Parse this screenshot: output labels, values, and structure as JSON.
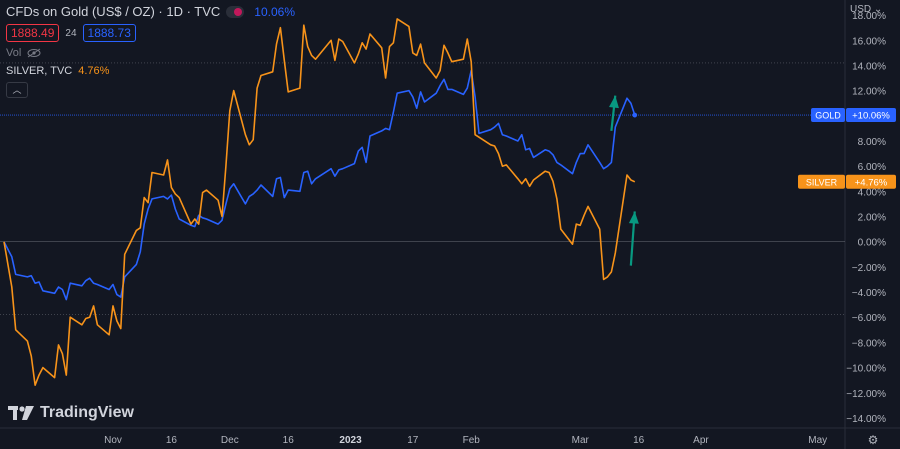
{
  "header": {
    "title": "CFDs on Gold (US$ / OZ) · 1D · TVC",
    "change_pct": "10.06%",
    "bid": "1888.49",
    "spread": "24",
    "ask": "1888.73",
    "vol_label": "Vol",
    "compare_symbol": "SILVER, TVC",
    "compare_pct": "4.76%",
    "currency": "USD",
    "brand": "TradingView"
  },
  "chart_data": {
    "type": "line",
    "y_axis": {
      "unit": "%",
      "ylim": [
        -14.8,
        19.2
      ],
      "ticks": [
        18,
        16,
        14,
        12,
        10,
        8,
        6,
        4,
        2,
        0,
        -2,
        -4,
        -6,
        -8,
        -10,
        -12,
        -14
      ],
      "tick_labels": [
        "18.00%",
        "16.00%",
        "14.00%",
        "12.00%",
        "10.00%",
        "8.00%",
        "6.00%",
        "4.00%",
        "2.00%",
        "0.00%",
        "−2.00%",
        "−4.00%",
        "−6.00%",
        "−8.00%",
        "−10.00%",
        "−12.00%",
        "−14.00%"
      ]
    },
    "x_axis": {
      "labels": [
        {
          "text": "Nov",
          "date": "2022-11-01"
        },
        {
          "text": "16",
          "date": "2022-11-16"
        },
        {
          "text": "Dec",
          "date": "2022-12-01"
        },
        {
          "text": "16",
          "date": "2022-12-16"
        },
        {
          "text": "2023",
          "date": "2023-01-01"
        },
        {
          "text": "17",
          "date": "2023-01-17"
        },
        {
          "text": "Feb",
          "date": "2023-02-01"
        },
        {
          "text": "Mar",
          "date": "2023-03-01"
        },
        {
          "text": "16",
          "date": "2023-03-16"
        },
        {
          "text": "Apr",
          "date": "2023-04-01"
        },
        {
          "text": "May",
          "date": "2023-05-01"
        }
      ],
      "xlim": [
        "2022-10-04",
        "2023-05-08"
      ]
    },
    "horizontal_lines": [
      14.2,
      10.06,
      0,
      -5.8
    ],
    "series": [
      {
        "name": "GOLD",
        "label": "+10.06%",
        "color": "#2962ff",
        "last": 10.06,
        "points": [
          [
            "2022-10-04",
            0.0
          ],
          [
            "2022-10-06",
            -1.2
          ],
          [
            "2022-10-07",
            -2.6
          ],
          [
            "2022-10-10",
            -2.8
          ],
          [
            "2022-10-11",
            -2.7
          ],
          [
            "2022-10-12",
            -3.3
          ],
          [
            "2022-10-13",
            -3.2
          ],
          [
            "2022-10-14",
            -3.9
          ],
          [
            "2022-10-17",
            -4.1
          ],
          [
            "2022-10-18",
            -3.6
          ],
          [
            "2022-10-19",
            -3.8
          ],
          [
            "2022-10-20",
            -4.6
          ],
          [
            "2022-10-21",
            -3.3
          ],
          [
            "2022-10-24",
            -3.5
          ],
          [
            "2022-10-25",
            -3.1
          ],
          [
            "2022-10-26",
            -2.9
          ],
          [
            "2022-10-27",
            -3.3
          ],
          [
            "2022-10-28",
            -3.4
          ],
          [
            "2022-10-31",
            -3.8
          ],
          [
            "2022-11-01",
            -3.4
          ],
          [
            "2022-11-02",
            -4.2
          ],
          [
            "2022-11-03",
            -4.4
          ],
          [
            "2022-11-04",
            -2.8
          ],
          [
            "2022-11-07",
            -1.8
          ],
          [
            "2022-11-08",
            -0.8
          ],
          [
            "2022-11-09",
            1.4
          ],
          [
            "2022-11-10",
            2.6
          ],
          [
            "2022-11-11",
            3.4
          ],
          [
            "2022-11-14",
            3.6
          ],
          [
            "2022-11-15",
            3.4
          ],
          [
            "2022-11-16",
            3.7
          ],
          [
            "2022-11-17",
            2.6
          ],
          [
            "2022-11-18",
            1.8
          ],
          [
            "2022-11-21",
            1.3
          ],
          [
            "2022-11-22",
            1.2
          ],
          [
            "2022-11-23",
            2.1
          ],
          [
            "2022-11-24",
            1.9
          ],
          [
            "2022-11-25",
            1.8
          ],
          [
            "2022-11-28",
            1.4
          ],
          [
            "2022-11-29",
            1.7
          ],
          [
            "2022-11-30",
            3.0
          ],
          [
            "2022-12-01",
            4.2
          ],
          [
            "2022-12-02",
            4.6
          ],
          [
            "2022-12-05",
            3.0
          ],
          [
            "2022-12-06",
            3.6
          ],
          [
            "2022-12-07",
            3.8
          ],
          [
            "2022-12-08",
            4.1
          ],
          [
            "2022-12-09",
            4.5
          ],
          [
            "2022-12-12",
            3.6
          ],
          [
            "2022-12-13",
            5.0
          ],
          [
            "2022-12-14",
            5.1
          ],
          [
            "2022-12-15",
            3.5
          ],
          [
            "2022-12-16",
            4.1
          ],
          [
            "2022-12-19",
            4.0
          ],
          [
            "2022-12-20",
            5.5
          ],
          [
            "2022-12-21",
            5.6
          ],
          [
            "2022-12-22",
            4.6
          ],
          [
            "2022-12-23",
            5.0
          ],
          [
            "2022-12-27",
            5.8
          ],
          [
            "2022-12-28",
            5.2
          ],
          [
            "2022-12-29",
            5.7
          ],
          [
            "2022-12-30",
            5.8
          ],
          [
            "2023-01-02",
            6.2
          ],
          [
            "2023-01-03",
            7.2
          ],
          [
            "2023-01-04",
            7.5
          ],
          [
            "2023-01-05",
            6.3
          ],
          [
            "2023-01-06",
            8.4
          ],
          [
            "2023-01-09",
            8.8
          ],
          [
            "2023-01-10",
            9.0
          ],
          [
            "2023-01-11",
            8.9
          ],
          [
            "2023-01-12",
            10.3
          ],
          [
            "2023-01-13",
            11.8
          ],
          [
            "2023-01-16",
            12.0
          ],
          [
            "2023-01-17",
            11.5
          ],
          [
            "2023-01-18",
            10.6
          ],
          [
            "2023-01-19",
            11.9
          ],
          [
            "2023-01-20",
            11.1
          ],
          [
            "2023-01-23",
            11.8
          ],
          [
            "2023-01-24",
            12.4
          ],
          [
            "2023-01-25",
            12.9
          ],
          [
            "2023-01-26",
            12.1
          ],
          [
            "2023-01-27",
            12.1
          ],
          [
            "2023-01-30",
            11.7
          ],
          [
            "2023-01-31",
            12.2
          ],
          [
            "2023-02-01",
            13.6
          ],
          [
            "2023-02-02",
            11.5
          ],
          [
            "2023-02-03",
            8.6
          ],
          [
            "2023-02-06",
            8.9
          ],
          [
            "2023-02-07",
            9.1
          ],
          [
            "2023-02-08",
            9.4
          ],
          [
            "2023-02-09",
            8.5
          ],
          [
            "2023-02-10",
            8.4
          ],
          [
            "2023-02-13",
            8.0
          ],
          [
            "2023-02-14",
            8.5
          ],
          [
            "2023-02-15",
            7.3
          ],
          [
            "2023-02-16",
            7.4
          ],
          [
            "2023-02-17",
            6.7
          ],
          [
            "2023-02-20",
            7.3
          ],
          [
            "2023-02-21",
            7.2
          ],
          [
            "2023-02-22",
            6.9
          ],
          [
            "2023-02-23",
            6.3
          ],
          [
            "2023-02-24",
            6.1
          ],
          [
            "2023-02-27",
            5.4
          ],
          [
            "2023-02-28",
            6.3
          ],
          [
            "2023-03-01",
            7.0
          ],
          [
            "2023-03-02",
            7.0
          ],
          [
            "2023-03-03",
            7.7
          ],
          [
            "2023-03-06",
            6.3
          ],
          [
            "2023-03-07",
            5.8
          ],
          [
            "2023-03-08",
            6.0
          ],
          [
            "2023-03-09",
            6.3
          ],
          [
            "2023-03-10",
            9.1
          ],
          [
            "2023-03-13",
            11.4
          ],
          [
            "2023-03-14",
            11.0
          ],
          [
            "2023-03-15",
            10.06
          ]
        ]
      },
      {
        "name": "SILVER",
        "label": "+4.76%",
        "color": "#f7931a",
        "last": 4.76,
        "points": [
          [
            "2022-10-04",
            0.0
          ],
          [
            "2022-10-06",
            -3.6
          ],
          [
            "2022-10-07",
            -7.0
          ],
          [
            "2022-10-10",
            -7.9
          ],
          [
            "2022-10-11",
            -9.1
          ],
          [
            "2022-10-12",
            -11.4
          ],
          [
            "2022-10-13",
            -10.6
          ],
          [
            "2022-10-14",
            -10.0
          ],
          [
            "2022-10-17",
            -10.8
          ],
          [
            "2022-10-18",
            -8.2
          ],
          [
            "2022-10-19",
            -8.9
          ],
          [
            "2022-10-20",
            -10.6
          ],
          [
            "2022-10-21",
            -6.0
          ],
          [
            "2022-10-24",
            -6.6
          ],
          [
            "2022-10-25",
            -6.1
          ],
          [
            "2022-10-26",
            -6.0
          ],
          [
            "2022-10-27",
            -5.1
          ],
          [
            "2022-10-28",
            -6.6
          ],
          [
            "2022-10-31",
            -7.4
          ],
          [
            "2022-11-01",
            -5.1
          ],
          [
            "2022-11-02",
            -6.3
          ],
          [
            "2022-11-03",
            -6.9
          ],
          [
            "2022-11-04",
            -1.0
          ],
          [
            "2022-11-07",
            0.9
          ],
          [
            "2022-11-08",
            1.1
          ],
          [
            "2022-11-09",
            3.5
          ],
          [
            "2022-11-10",
            3.1
          ],
          [
            "2022-11-11",
            5.5
          ],
          [
            "2022-11-14",
            5.3
          ],
          [
            "2022-11-15",
            6.5
          ],
          [
            "2022-11-16",
            4.3
          ],
          [
            "2022-11-17",
            3.8
          ],
          [
            "2022-11-18",
            3.5
          ],
          [
            "2022-11-21",
            1.4
          ],
          [
            "2022-11-22",
            1.8
          ],
          [
            "2022-11-23",
            1.4
          ],
          [
            "2022-11-24",
            3.9
          ],
          [
            "2022-11-25",
            4.1
          ],
          [
            "2022-11-28",
            3.3
          ],
          [
            "2022-11-29",
            2.0
          ],
          [
            "2022-11-30",
            6.0
          ],
          [
            "2022-12-01",
            10.4
          ],
          [
            "2022-12-02",
            12.0
          ],
          [
            "2022-12-05",
            8.5
          ],
          [
            "2022-12-06",
            7.7
          ],
          [
            "2022-12-07",
            8.1
          ],
          [
            "2022-12-08",
            12.2
          ],
          [
            "2022-12-09",
            13.2
          ],
          [
            "2022-12-12",
            13.5
          ],
          [
            "2022-12-13",
            15.7
          ],
          [
            "2022-12-14",
            17.0
          ],
          [
            "2022-12-15",
            14.4
          ],
          [
            "2022-12-16",
            11.9
          ],
          [
            "2022-12-19",
            12.2
          ],
          [
            "2022-12-20",
            17.2
          ],
          [
            "2022-12-21",
            15.5
          ],
          [
            "2022-12-22",
            14.8
          ],
          [
            "2022-12-23",
            14.5
          ],
          [
            "2022-12-27",
            16.0
          ],
          [
            "2022-12-28",
            14.4
          ],
          [
            "2022-12-29",
            16.1
          ],
          [
            "2022-12-30",
            15.9
          ],
          [
            "2023-01-02",
            14.2
          ],
          [
            "2023-01-03",
            14.9
          ],
          [
            "2023-01-04",
            15.8
          ],
          [
            "2023-01-05",
            15.3
          ],
          [
            "2023-01-06",
            16.5
          ],
          [
            "2023-01-09",
            15.4
          ],
          [
            "2023-01-10",
            13.0
          ],
          [
            "2023-01-11",
            15.5
          ],
          [
            "2023-01-12",
            15.8
          ],
          [
            "2023-01-13",
            17.7
          ],
          [
            "2023-01-16",
            17.1
          ],
          [
            "2023-01-17",
            15.0
          ],
          [
            "2023-01-18",
            14.8
          ],
          [
            "2023-01-19",
            15.7
          ],
          [
            "2023-01-20",
            14.2
          ],
          [
            "2023-01-23",
            13.0
          ],
          [
            "2023-01-24",
            13.6
          ],
          [
            "2023-01-25",
            15.6
          ],
          [
            "2023-01-26",
            15.0
          ],
          [
            "2023-01-27",
            14.3
          ],
          [
            "2023-01-30",
            14.5
          ],
          [
            "2023-01-31",
            16.1
          ],
          [
            "2023-02-01",
            14.3
          ],
          [
            "2023-02-02",
            8.5
          ],
          [
            "2023-02-03",
            8.3
          ],
          [
            "2023-02-06",
            7.7
          ],
          [
            "2023-02-07",
            7.6
          ],
          [
            "2023-02-08",
            7.0
          ],
          [
            "2023-02-09",
            6.0
          ],
          [
            "2023-02-10",
            6.1
          ],
          [
            "2023-02-13",
            5.0
          ],
          [
            "2023-02-14",
            4.6
          ],
          [
            "2023-02-15",
            5.0
          ],
          [
            "2023-02-16",
            4.4
          ],
          [
            "2023-02-17",
            4.9
          ],
          [
            "2023-02-20",
            5.6
          ],
          [
            "2023-02-21",
            5.5
          ],
          [
            "2023-02-22",
            4.8
          ],
          [
            "2023-02-23",
            3.4
          ],
          [
            "2023-02-24",
            1.0
          ],
          [
            "2023-02-27",
            -0.2
          ],
          [
            "2023-02-28",
            1.4
          ],
          [
            "2023-03-01",
            1.3
          ],
          [
            "2023-03-02",
            2.1
          ],
          [
            "2023-03-03",
            2.8
          ],
          [
            "2023-03-06",
            1.0
          ],
          [
            "2023-03-07",
            -3.0
          ],
          [
            "2023-03-08",
            -2.8
          ],
          [
            "2023-03-09",
            -2.4
          ],
          [
            "2023-03-10",
            -0.9
          ],
          [
            "2023-03-13",
            5.3
          ],
          [
            "2023-03-14",
            4.9
          ],
          [
            "2023-03-15",
            4.76
          ]
        ]
      }
    ],
    "annotations": [
      {
        "type": "arrow",
        "color": "#089981",
        "from": [
          "2023-03-09",
          8.8
        ],
        "to": [
          "2023-03-10",
          11.6
        ]
      },
      {
        "type": "arrow",
        "color": "#089981",
        "from": [
          "2023-03-14",
          -1.9
        ],
        "to": [
          "2023-03-15",
          2.4
        ]
      }
    ],
    "grid": false,
    "legend": "top-left"
  }
}
